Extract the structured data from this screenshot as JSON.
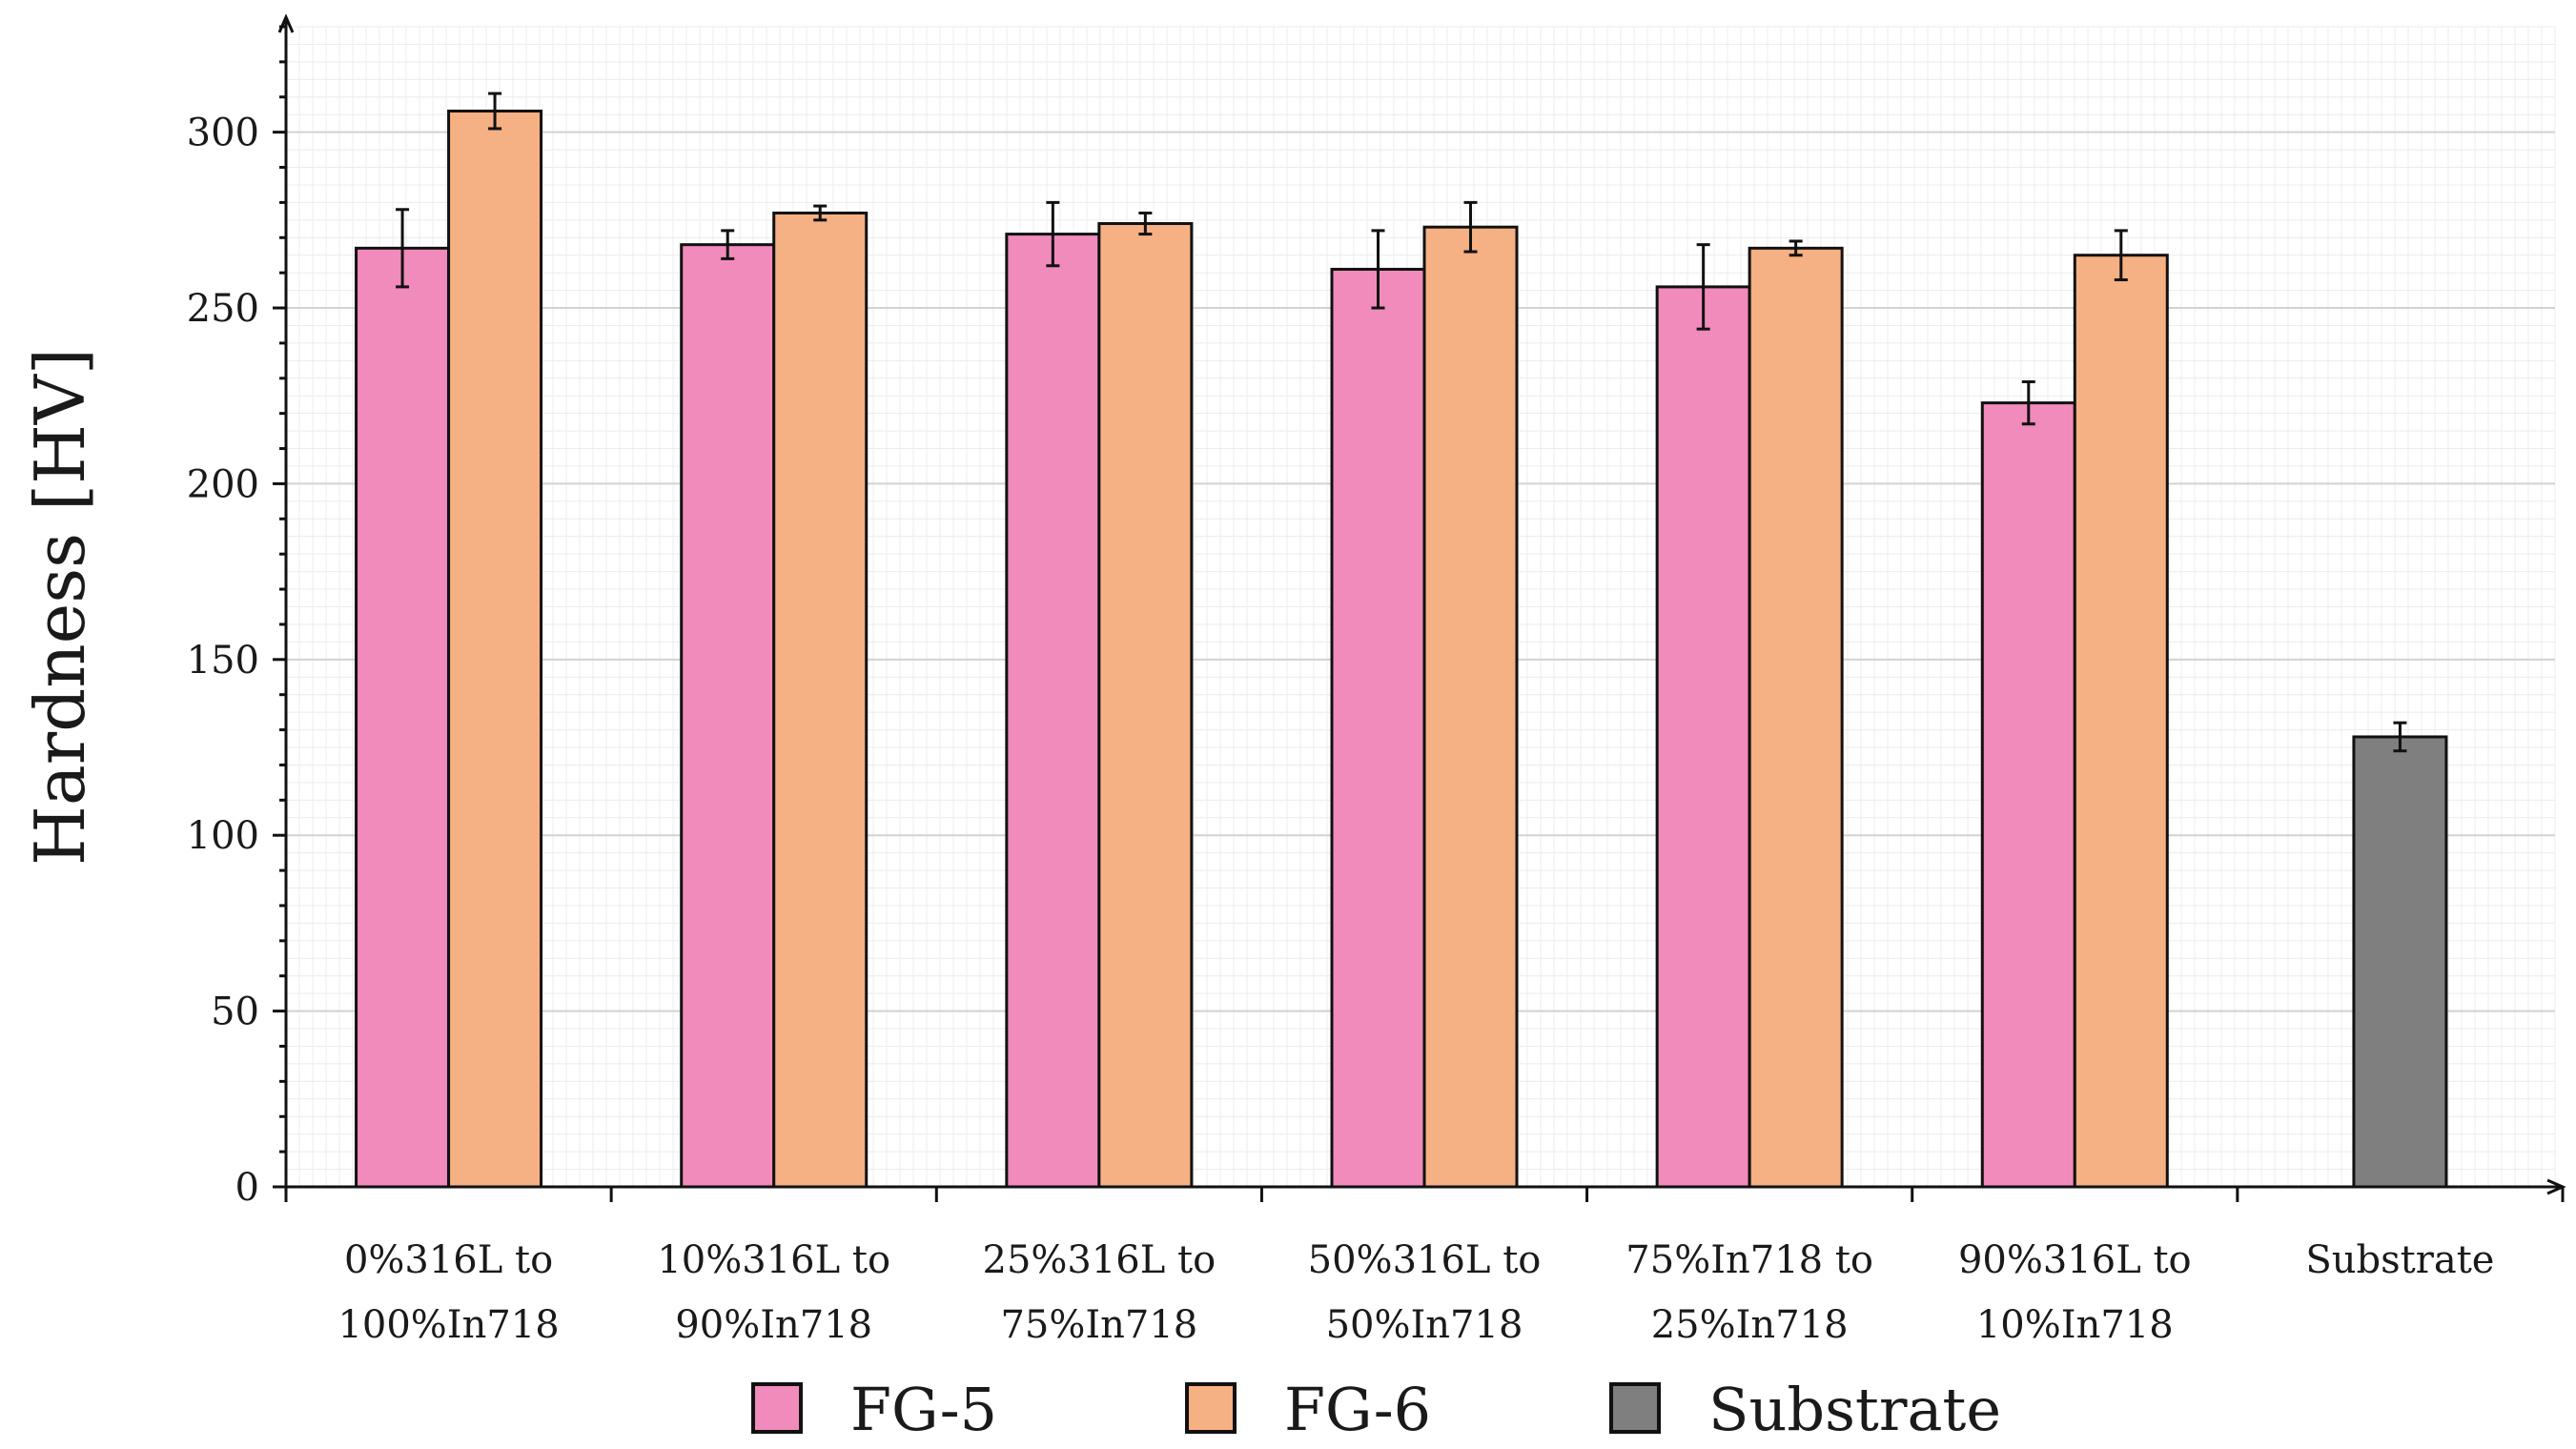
{
  "chart_data": {
    "type": "bar",
    "title": "",
    "xlabel": "",
    "ylabel": "Hardness [HV]",
    "ylim": [
      0,
      330
    ],
    "yticks": [
      0,
      50,
      100,
      150,
      200,
      250,
      300
    ],
    "grid": true,
    "legend_position": "bottom",
    "categories": [
      [
        "0%316L to",
        "100%In718"
      ],
      [
        "10%316L to",
        "90%In718"
      ],
      [
        "25%316L to",
        "75%In718"
      ],
      [
        "50%316L to",
        "50%In718"
      ],
      [
        "75%In718 to",
        "25%In718"
      ],
      [
        "90%316L to",
        "10%In718"
      ],
      [
        "Substrate"
      ]
    ],
    "series": [
      {
        "name": "FG-5",
        "color": "#f08bbb",
        "values": [
          267,
          268,
          271,
          261,
          256,
          223,
          null
        ],
        "errors": [
          11,
          4,
          9,
          11,
          12,
          6,
          null
        ]
      },
      {
        "name": "FG-6",
        "color": "#f5b083",
        "values": [
          306,
          277,
          274,
          273,
          267,
          265,
          null
        ],
        "errors": [
          5,
          2,
          3,
          7,
          2,
          7,
          null
        ]
      },
      {
        "name": "Substrate",
        "color": "#7f7f7f",
        "values": [
          null,
          null,
          null,
          null,
          null,
          null,
          128
        ],
        "errors": [
          null,
          null,
          null,
          null,
          null,
          null,
          4
        ]
      }
    ]
  }
}
